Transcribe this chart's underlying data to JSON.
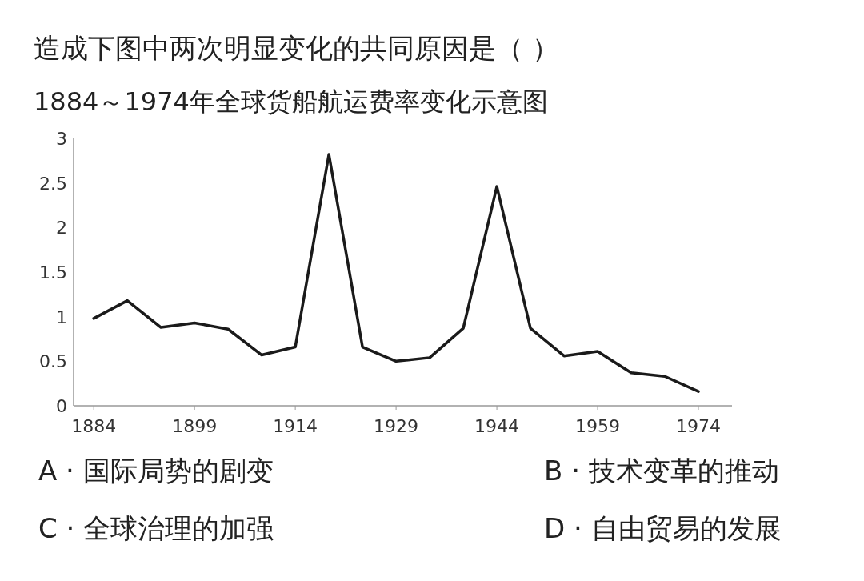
{
  "chart_data": {
    "type": "line",
    "title": "1884～1974年全球货船航运费率变化示意图",
    "annotations": [
      "造成下图中两次明显变化的共同原因是（    ）",
      "A · 国际局势的剧变",
      "B · 技术变革的推动",
      "C · 全球治理的加强",
      "D · 自由贸易的发展"
    ],
    "x": [
      1884,
      1889,
      1894,
      1899,
      1904,
      1909,
      1914,
      1919,
      1924,
      1929,
      1934,
      1939,
      1944,
      1949,
      1954,
      1959,
      1964,
      1969,
      1974
    ],
    "series": [
      {
        "color": "#1a1a1a",
        "values": [
          0.98,
          1.18,
          0.88,
          0.93,
          0.86,
          0.57,
          0.66,
          2.82,
          0.66,
          0.5,
          0.54,
          0.87,
          2.46,
          0.87,
          0.56,
          0.61,
          0.37,
          0.33,
          0.16
        ]
      }
    ],
    "xlim": [
      1881,
      1979
    ],
    "ylim": [
      0,
      3
    ],
    "xticks": [
      1884,
      1899,
      1914,
      1929,
      1944,
      1959,
      1974
    ],
    "yticks": [
      0,
      {
        "value": 0.5,
        "label": "0.5"
      },
      1,
      {
        "value": 1.5,
        "label": "1.5"
      },
      2,
      {
        "value": 2.5,
        "label": "2.5"
      },
      3
    ],
    "line_style": "solid"
  }
}
